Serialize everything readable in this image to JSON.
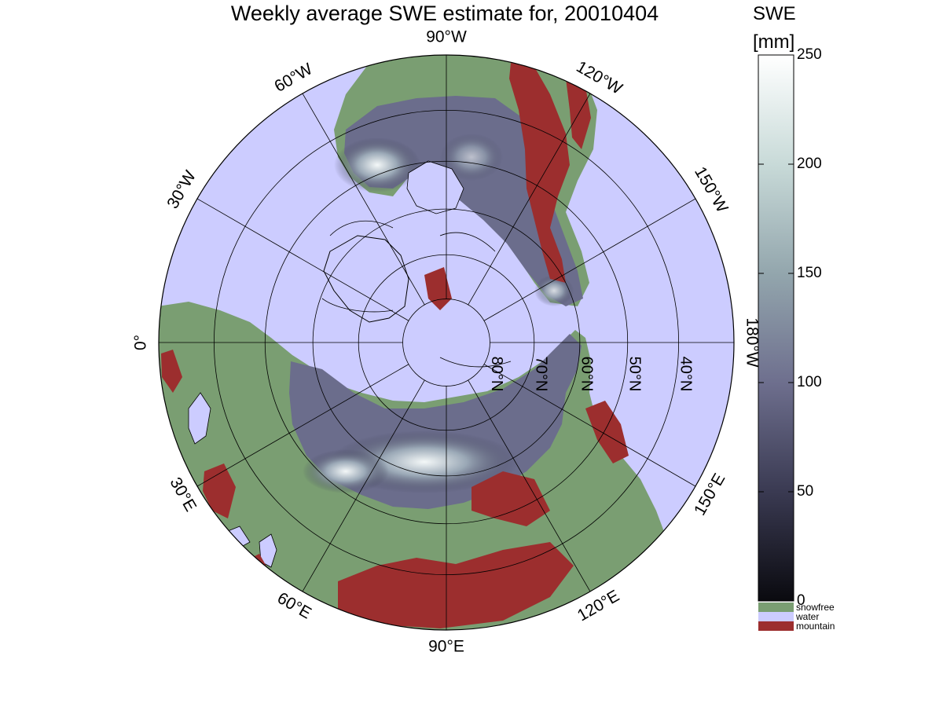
{
  "title": "Weekly average SWE estimate for, 20010404",
  "colorbar": {
    "label_line1": "SWE",
    "label_line2": "[mm]",
    "ticks": [
      0,
      50,
      100,
      150,
      200,
      250
    ],
    "range": [
      0,
      250
    ],
    "gradient_colors": [
      "#0a0a0f",
      "#3a3a52",
      "#6e6f8e",
      "#93a6ad",
      "#c8dad8",
      "#ffffff"
    ]
  },
  "legend": [
    {
      "label": "snowfree",
      "color": "#7a9e72"
    },
    {
      "label": "water",
      "color": "#ccccff"
    },
    {
      "label": "mountain",
      "color": "#9c2e2e"
    }
  ],
  "map": {
    "projection": "north-polar-stereographic",
    "outer_latitude": 30,
    "parallels": [
      {
        "lat": 80,
        "label": "80°N"
      },
      {
        "lat": 70,
        "label": "70°N"
      },
      {
        "lat": 60,
        "label": "60°N"
      },
      {
        "lat": 50,
        "label": "50°N"
      },
      {
        "lat": 40,
        "label": "40°N"
      }
    ],
    "meridians": [
      {
        "lon": 0,
        "label": "0°"
      },
      {
        "lon": 30,
        "label": "30°E"
      },
      {
        "lon": 60,
        "label": "60°E"
      },
      {
        "lon": 90,
        "label": "90°E"
      },
      {
        "lon": 120,
        "label": "120°E"
      },
      {
        "lon": 150,
        "label": "150°E"
      },
      {
        "lon": 180,
        "label": "180°W"
      },
      {
        "lon": -150,
        "label": "150°W"
      },
      {
        "lon": -120,
        "label": "120°W"
      },
      {
        "lon": -90,
        "label": "90°W"
      },
      {
        "lon": -60,
        "label": "60°W"
      },
      {
        "lon": -30,
        "label": "30°W"
      }
    ],
    "colors": {
      "water": "#ccccff",
      "snowfree": "#7a9e72",
      "mountain": "#9c2e2e",
      "snow_low": "#14141c",
      "snow_mid": "#6b6d8c",
      "snow_high": "#f2f6f6"
    }
  }
}
